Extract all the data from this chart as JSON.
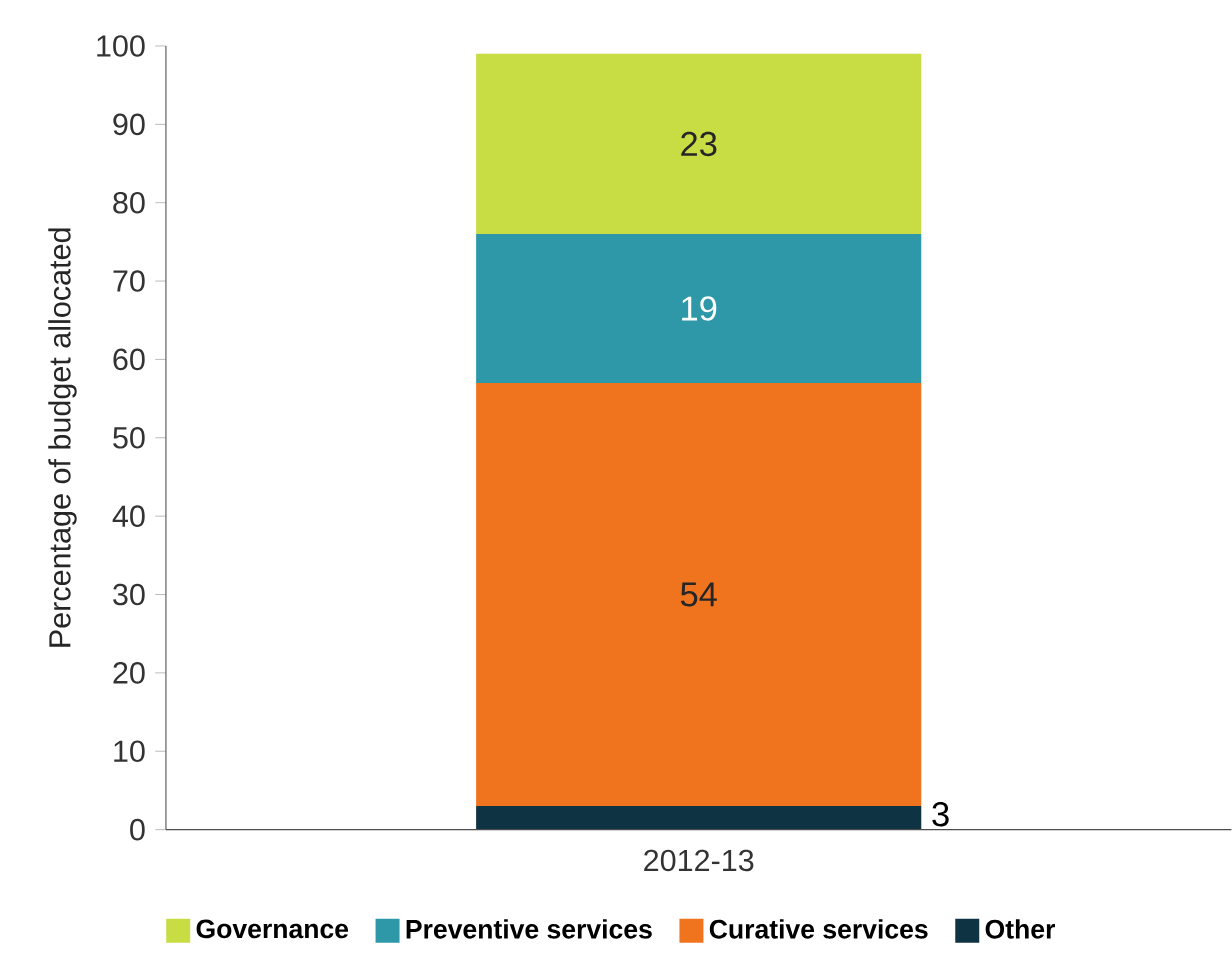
{
  "chart_data": {
    "type": "bar",
    "stacked": true,
    "ylabel": "Percentage of budget allocated",
    "categories": [
      "2012-13"
    ],
    "series": [
      {
        "name": "Other",
        "color": "#0e3343",
        "values": [
          3
        ]
      },
      {
        "name": "Curative services",
        "color": "#f0731e",
        "values": [
          54
        ]
      },
      {
        "name": "Preventive services",
        "color": "#2e97a8",
        "values": [
          19
        ]
      },
      {
        "name": "Governance",
        "color": "#c8dc44",
        "values": [
          23
        ]
      }
    ],
    "ylim": [
      0,
      100
    ],
    "yticks": [
      0,
      10,
      20,
      30,
      40,
      50,
      60,
      70,
      80,
      90,
      100
    ],
    "data_labels": true,
    "legend": "bottom"
  }
}
